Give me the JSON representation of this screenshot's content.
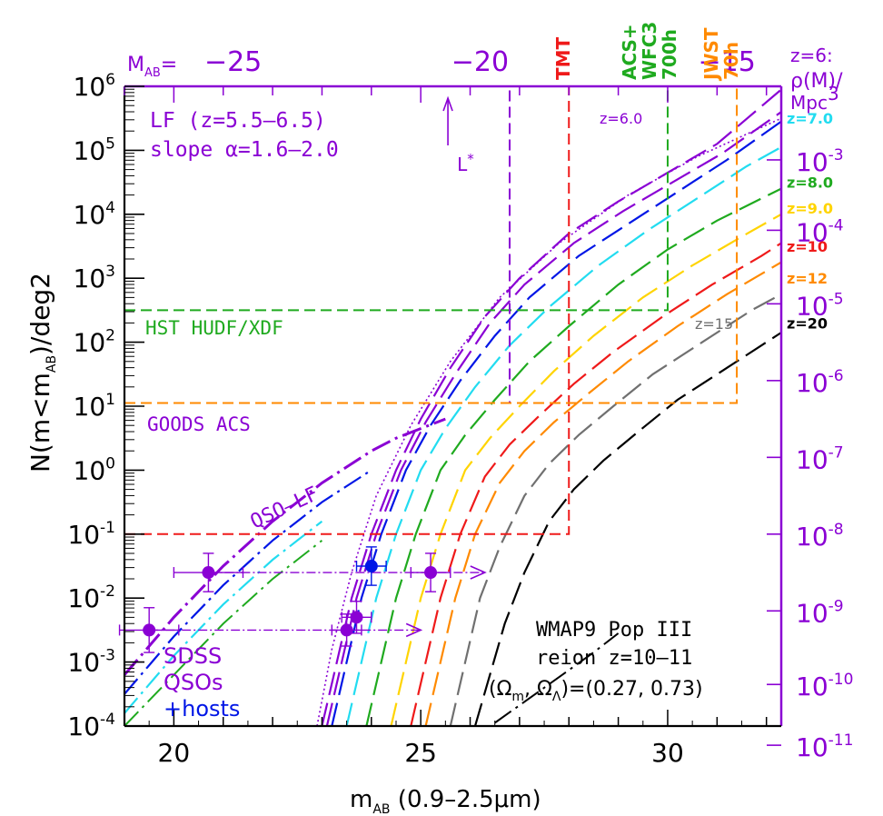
{
  "colors": {
    "purple": "#8a00d4",
    "blue": "#0016e6",
    "cyan": "#22dcf0",
    "green": "#1faa1f",
    "yellow": "#ffd400",
    "red": "#ef1a1a",
    "orange": "#ff8a00",
    "gray": "#707070",
    "black": "#000000"
  },
  "chart_data": {
    "type": "line",
    "xlabel": "m",
    "xlabel_sub": "AB",
    "xlabel_rest": "(0.9–2.5μm)",
    "ylabel": "N(m<m",
    "ylabel_sub": "AB",
    "ylabel_rest": ")/deg2",
    "xlim": [
      19.0,
      32.3
    ],
    "ylim_log10": [
      -4,
      6
    ],
    "x_ticks": [
      "20",
      "25",
      "30"
    ],
    "x_tick_values": [
      20,
      25,
      30
    ],
    "y_ticks_exp": [
      "-4",
      "-3",
      "-2",
      "-1",
      "0",
      "1",
      "2",
      "3",
      "4",
      "5",
      "6"
    ],
    "top_axis": {
      "label": "M",
      "label_sub": "AB",
      "label_eq": "=",
      "ticks": [
        "−25",
        "−20",
        "−15"
      ],
      "tick_values_mAB": [
        21.2,
        26.2,
        31.2
      ]
    },
    "right_axis": {
      "title_line1": "z=6:",
      "title_line2": "ρ(M)/",
      "title_line3": "Mpc",
      "title_sup": "3",
      "ticks_exp": [
        "-3",
        "-4",
        "-5",
        "-6",
        "-7",
        "-8",
        "-9",
        "-10",
        "-11"
      ],
      "tick_log10N": [
        4.85,
        3.75,
        2.6,
        1.4,
        0.2,
        -1.0,
        -2.2,
        -3.35,
        -4.3
      ]
    },
    "annotations": {
      "lf_line1": "LF (z=5.5–6.5)",
      "lf_line2": "slope α=1.6–2.0",
      "lstar": "L",
      "lstar_sup": "*",
      "hst": "HST HUDF/XDF",
      "goods": "GOODS ACS",
      "qso_lf": "QSO–LF",
      "sdss1": "SDSS",
      "sdss2": "QSOs",
      "sdss3": "+hosts",
      "wmap1": "WMAP9 Pop III",
      "wmap2": "reion z=10–11",
      "wmap3_a": "(Ω",
      "wmap3_m": "m",
      "wmap3_b": ", Ω",
      "wmap3_l": "Λ",
      "wmap3_c": ")=(0.27, 0.73)",
      "tmt": "TMT",
      "acs1": "ACS+",
      "acs2": "WFC3",
      "acs3": "700h",
      "jwst1": "JWST",
      "jwst2": "70h",
      "z_inside_6": "z=6.0",
      "z_inside_15": "z=15"
    },
    "redshift_labels": [
      {
        "text": "z=7.0",
        "color": "cyan",
        "log10N": 5.5
      },
      {
        "text": "z=8.0",
        "color": "green",
        "log10N": 4.5
      },
      {
        "text": "z=9.0",
        "color": "yellow",
        "log10N": 4.1
      },
      {
        "text": "z=10",
        "color": "red",
        "log10N": 3.5
      },
      {
        "text": "z=12",
        "color": "orange",
        "log10N": 3.0
      },
      {
        "text": "z=20",
        "color": "black",
        "log10N": 2.3
      }
    ],
    "survey_limits": [
      {
        "name": "HST HUDF/XDF",
        "color": "green",
        "mlim": 30.0,
        "log10N": 2.5
      },
      {
        "name": "GOODS ACS",
        "color": "purple",
        "mlim": 26.8,
        "log10N": 1.05
      },
      {
        "name": "TMT",
        "color": "red",
        "mlim": 28.0,
        "log10N": -1.0
      },
      {
        "name": "JWST 70h",
        "color": "orange",
        "mlim": 31.4,
        "log10N": 1.05
      }
    ],
    "lstar_m": 25.55,
    "series": [
      {
        "name": "z=6.0",
        "color": "purple",
        "m": [
          23.0,
          23.3,
          23.6,
          24.0,
          24.5,
          25.0,
          25.6,
          26.3,
          27.0,
          28.0,
          29.0,
          30.0,
          31.0,
          32.3
        ],
        "log10N": [
          -4.0,
          -3.0,
          -2.0,
          -1.0,
          0.0,
          0.8,
          1.6,
          2.4,
          3.0,
          3.7,
          4.2,
          4.65,
          5.1,
          5.95
        ]
      },
      {
        "name": "z=6.0b",
        "color": "purple",
        "m": [
          23.1,
          23.4,
          23.7,
          24.1,
          24.6,
          25.1,
          25.7,
          26.4,
          27.1,
          28.1,
          29.1,
          30.1,
          31.1,
          32.3
        ],
        "log10N": [
          -4.0,
          -3.0,
          -2.0,
          -1.0,
          0.0,
          0.75,
          1.5,
          2.3,
          2.9,
          3.55,
          4.05,
          4.5,
          4.95,
          5.6
        ]
      },
      {
        "name": "z=6.5",
        "color": "blue",
        "m": [
          23.2,
          23.5,
          23.8,
          24.2,
          24.7,
          25.2,
          25.8,
          26.5,
          27.2,
          28.2,
          29.2,
          30.2,
          31.2,
          32.3
        ],
        "log10N": [
          -4.0,
          -3.0,
          -2.0,
          -1.0,
          0.0,
          0.7,
          1.4,
          2.1,
          2.7,
          3.35,
          3.85,
          4.35,
          4.85,
          5.45
        ]
      },
      {
        "name": "z=7.0",
        "color": "cyan",
        "m": [
          23.5,
          23.8,
          24.1,
          24.5,
          25.0,
          25.5,
          26.1,
          26.8,
          27.6,
          28.6,
          29.6,
          30.6,
          31.6,
          32.3
        ],
        "log10N": [
          -4.0,
          -3.0,
          -2.0,
          -1.0,
          0.0,
          0.65,
          1.3,
          1.95,
          2.55,
          3.2,
          3.75,
          4.25,
          4.75,
          5.05
        ]
      },
      {
        "name": "z=8.0",
        "color": "green",
        "m": [
          23.9,
          24.2,
          24.5,
          24.9,
          25.4,
          25.9,
          26.5,
          27.2,
          28.0,
          29.0,
          30.0,
          31.0,
          32.3
        ],
        "log10N": [
          -4.0,
          -3.0,
          -2.0,
          -1.0,
          0.0,
          0.55,
          1.1,
          1.7,
          2.25,
          2.9,
          3.45,
          3.9,
          4.4
        ]
      },
      {
        "name": "z=9.0",
        "color": "yellow",
        "m": [
          24.4,
          24.7,
          25.0,
          25.4,
          25.9,
          26.4,
          27.0,
          27.7,
          28.5,
          29.5,
          30.5,
          31.5,
          32.3
        ],
        "log10N": [
          -4.0,
          -3.0,
          -2.0,
          -1.0,
          0.0,
          0.5,
          1.0,
          1.55,
          2.1,
          2.7,
          3.2,
          3.65,
          4.0
        ]
      },
      {
        "name": "z=10",
        "color": "red",
        "m": [
          24.8,
          25.1,
          25.4,
          25.8,
          26.3,
          26.8,
          27.4,
          28.1,
          28.9,
          29.9,
          30.9,
          31.9,
          32.3
        ],
        "log10N": [
          -4.0,
          -3.0,
          -2.0,
          -1.0,
          -0.1,
          0.4,
          0.85,
          1.35,
          1.85,
          2.4,
          2.9,
          3.35,
          3.55
        ]
      },
      {
        "name": "z=12",
        "color": "orange",
        "m": [
          25.1,
          25.4,
          25.7,
          26.1,
          26.6,
          27.1,
          27.7,
          28.4,
          29.2,
          30.2,
          31.2,
          32.3
        ],
        "log10N": [
          -4.0,
          -3.0,
          -2.0,
          -1.0,
          -0.2,
          0.3,
          0.75,
          1.2,
          1.7,
          2.25,
          2.75,
          3.25
        ]
      },
      {
        "name": "z=15",
        "color": "gray",
        "m": [
          25.6,
          25.9,
          26.2,
          26.6,
          27.1,
          27.6,
          28.2,
          28.9,
          29.7,
          30.7,
          31.7,
          32.3
        ],
        "log10N": [
          -4.0,
          -3.0,
          -2.0,
          -1.2,
          -0.4,
          0.1,
          0.55,
          1.0,
          1.5,
          2.0,
          2.5,
          2.75
        ]
      },
      {
        "name": "z=20",
        "color": "black",
        "m": [
          26.1,
          26.4,
          26.7,
          27.1,
          27.6,
          28.1,
          28.7,
          29.4,
          30.2,
          31.2,
          32.3
        ],
        "log10N": [
          -4.0,
          -3.2,
          -2.4,
          -1.6,
          -0.8,
          -0.3,
          0.15,
          0.6,
          1.1,
          1.6,
          2.15
        ]
      }
    ],
    "qso_lf": {
      "m": [
        19.0,
        19.5,
        20.0,
        20.5,
        21.0,
        21.5,
        22.0,
        22.5,
        23.0,
        23.5,
        24.0,
        24.5,
        25.0,
        25.5
      ],
      "log10N": [
        -3.2,
        -2.75,
        -2.3,
        -1.9,
        -1.5,
        -1.15,
        -0.8,
        -0.5,
        -0.2,
        0.05,
        0.3,
        0.5,
        0.65,
        0.8
      ]
    },
    "qso_points": [
      {
        "m": 19.5,
        "log10N": -2.5,
        "err_lo": 0.35,
        "err_hi": 0.35,
        "xerr": 0.6,
        "color": "purple"
      },
      {
        "m": 20.7,
        "log10N": -1.6,
        "err_lo": 0.3,
        "err_hi": 0.3,
        "xerr": 0.7,
        "color": "purple"
      },
      {
        "m": 23.5,
        "log10N": -2.5,
        "err_lo": 0.25,
        "err_hi": 0.25,
        "xerr": 0.3,
        "color": "purple"
      },
      {
        "m": 23.7,
        "log10N": -2.3,
        "err_lo": 0.25,
        "err_hi": 0.25,
        "xerr": 0.3,
        "color": "purple"
      },
      {
        "m": 24.0,
        "log10N": -1.5,
        "err_lo": 0.3,
        "err_hi": 0.3,
        "xerr": 0.3,
        "color": "blue"
      },
      {
        "m": 25.2,
        "log10N": -1.6,
        "err_lo": 0.3,
        "err_hi": 0.3,
        "xerr": 0.4,
        "color": "purple"
      }
    ],
    "qso_arrows": [
      {
        "m_from": 19.5,
        "m_to": 25.0,
        "log10N": -2.5
      },
      {
        "m_from": 20.7,
        "m_to": 26.3,
        "log10N": -1.6
      }
    ]
  }
}
